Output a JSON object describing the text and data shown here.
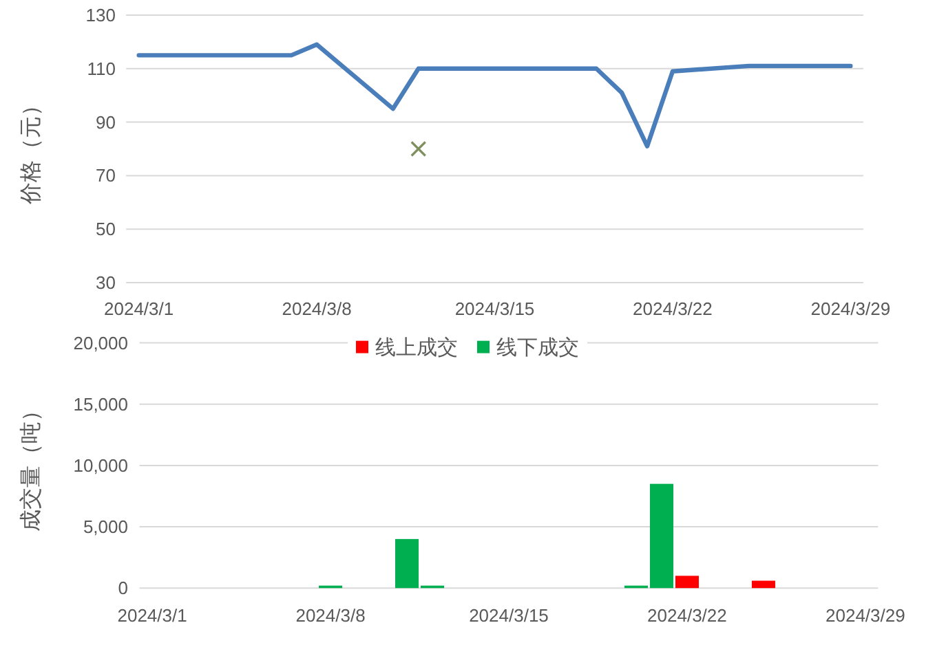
{
  "chart_data": [
    {
      "type": "line",
      "ylabel": "价格（元）",
      "x": [
        "2024-03-01",
        "2024-03-04",
        "2024-03-05",
        "2024-03-06",
        "2024-03-07",
        "2024-03-08",
        "2024-03-11",
        "2024-03-12",
        "2024-03-13",
        "2024-03-14",
        "2024-03-15",
        "2024-03-18",
        "2024-03-19",
        "2024-03-20",
        "2024-03-21",
        "2024-03-22",
        "2024-03-25",
        "2024-03-26",
        "2024-03-27",
        "2024-03-28",
        "2024-03-29"
      ],
      "series": [
        {
          "color": "#4a7ebb",
          "values": [
            115,
            115,
            115,
            115,
            115,
            119,
            95,
            110,
            110,
            110,
            110,
            110,
            110,
            101,
            81,
            109,
            111,
            111,
            111,
            111,
            111
          ]
        },
        {
          "type": "scatter",
          "color": "#7f8f5f",
          "marker": "cross",
          "x": [
            "2024-03-12"
          ],
          "values": [
            80
          ]
        }
      ],
      "xlim": [
        "2024-02-29T12:00",
        "2024-03-29T12:00"
      ],
      "xticks": [
        {
          "value": "2024-03-01",
          "label": "2024/3/1"
        },
        {
          "value": "2024-03-08",
          "label": "2024/3/8"
        },
        {
          "value": "2024-03-15",
          "label": "2024/3/15"
        },
        {
          "value": "2024-03-22",
          "label": "2024/3/22"
        },
        {
          "value": "2024-03-29",
          "label": "2024/3/29"
        }
      ],
      "ylim": [
        30,
        130
      ],
      "yticks": [
        30,
        50,
        70,
        90,
        110,
        130
      ],
      "grid": "y"
    },
    {
      "type": "bar",
      "ylabel": "成交量（吨）",
      "series": [
        {
          "name": "线上成交",
          "color": "#ff0000",
          "x": [
            "2024-03-22",
            "2024-03-25"
          ],
          "values": [
            1000,
            600
          ]
        },
        {
          "name": "线下成交",
          "color": "#00b050",
          "x": [
            "2024-03-08",
            "2024-03-11",
            "2024-03-12",
            "2024-03-20",
            "2024-03-21"
          ],
          "values": [
            200,
            4000,
            200,
            200,
            8500
          ]
        }
      ],
      "xlim": [
        "2024-02-29T12:00",
        "2024-03-29T12:00"
      ],
      "xticks": [
        {
          "value": "2024-03-01",
          "label": "2024/3/1"
        },
        {
          "value": "2024-03-08",
          "label": "2024/3/8"
        },
        {
          "value": "2024-03-15",
          "label": "2024/3/15"
        },
        {
          "value": "2024-03-22",
          "label": "2024/3/22"
        },
        {
          "value": "2024-03-29",
          "label": "2024/3/29"
        }
      ],
      "ylim": [
        0,
        20000
      ],
      "yticks": [
        0,
        {
          "value": 5000,
          "label": "5,000"
        },
        {
          "value": 10000,
          "label": "10,000"
        },
        {
          "value": 15000,
          "label": "15,000"
        },
        {
          "value": 20000,
          "label": "20,000"
        }
      ],
      "grid": "y",
      "legend": "top"
    }
  ]
}
